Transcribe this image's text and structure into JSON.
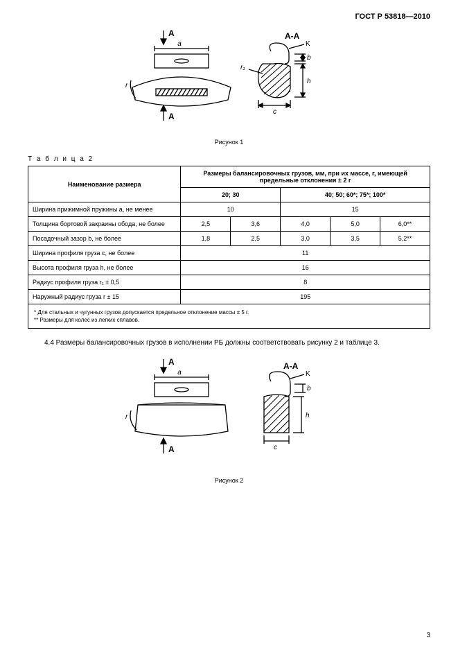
{
  "header": {
    "doc_code": "ГОСТ Р 53818—2010"
  },
  "figure1": {
    "caption": "Рисунок 1",
    "labels": {
      "A_top": "A",
      "A_bot": "A",
      "section": "A-A",
      "K": "K",
      "a": "a",
      "b": "b",
      "c": "c",
      "h": "h",
      "r": "r",
      "r1": "r₁"
    },
    "colors": {
      "stroke": "#000000",
      "hatch": "#000000"
    }
  },
  "table2": {
    "label": "Т а б л и ц а   2",
    "head_name": "Наименование размера",
    "head_group": "Размеры балансировочных грузов, мм, при их массе, г, имеющей предельные отклонения ± 2 г",
    "mass_left": "20; 30",
    "mass_right": "40; 50; 60*; 75*; 100*",
    "rows": [
      {
        "name": "Ширина прижимной пружины a, не менее",
        "cells": [
          "10",
          "15"
        ],
        "spans": [
          2,
          3
        ]
      },
      {
        "name": "Толщина бортовой закраины обода, не более",
        "cells": [
          "2,5",
          "3,6",
          "4,0",
          "5,0",
          "6,0**"
        ],
        "spans": [
          1,
          1,
          1,
          1,
          1
        ]
      },
      {
        "name": "Посадочный зазор b, не более",
        "cells": [
          "1,8",
          "2,5",
          "3,0",
          "3,5",
          "5,2**"
        ],
        "spans": [
          1,
          1,
          1,
          1,
          1
        ]
      },
      {
        "name": "Ширина профиля груза c, не более",
        "cells": [
          "11"
        ],
        "spans": [
          5
        ]
      },
      {
        "name": "Высота профиля груза h, не более",
        "cells": [
          "16"
        ],
        "spans": [
          5
        ]
      },
      {
        "name": "Радиус профиля груза r₁ ± 0,5",
        "cells": [
          "8"
        ],
        "spans": [
          5
        ]
      },
      {
        "name": "Наружный радиус груза r ± 15",
        "cells": [
          "195"
        ],
        "spans": [
          5
        ]
      }
    ],
    "footnote1": "*  Для стальных и чугунных грузов допускается предельное отклонение массы ± 5 г.",
    "footnote2": "** Размеры для колес из легких сплавов."
  },
  "para44": "4.4  Размеры балансировочных грузов в исполнении РБ должны соответствовать рисунку 2 и таблице 3.",
  "figure2": {
    "caption": "Рисунок 2",
    "labels": {
      "A_top": "A",
      "A_bot": "A",
      "section": "A-A",
      "K": "K",
      "a": "a",
      "b": "b",
      "c": "c",
      "h": "h",
      "r": "r"
    }
  },
  "page_number": "3"
}
